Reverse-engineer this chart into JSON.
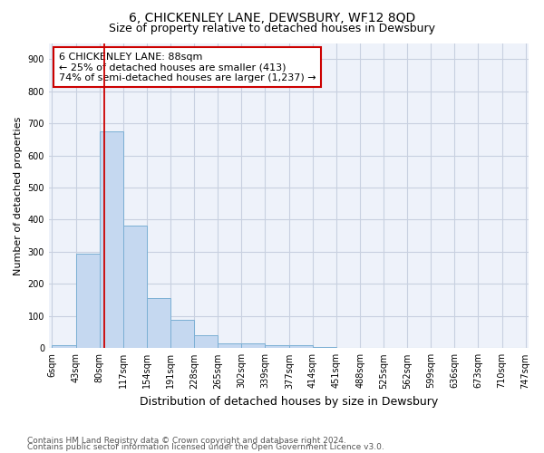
{
  "title1": "6, CHICKENLEY LANE, DEWSBURY, WF12 8QD",
  "title2": "Size of property relative to detached houses in Dewsbury",
  "xlabel": "Distribution of detached houses by size in Dewsbury",
  "ylabel": "Number of detached properties",
  "bar_edges": [
    6,
    43,
    80,
    117,
    154,
    191,
    228,
    265,
    302,
    339,
    377,
    414,
    451,
    488,
    525,
    562,
    599,
    636,
    673,
    710,
    747
  ],
  "bar_heights": [
    10,
    295,
    675,
    383,
    155,
    88,
    40,
    15,
    15,
    10,
    10,
    5,
    0,
    0,
    0,
    0,
    0,
    0,
    0,
    0
  ],
  "bar_color": "#c5d8f0",
  "bar_edgecolor": "#7bafd4",
  "vline_x": 88,
  "vline_color": "#cc0000",
  "annotation_line1": "6 CHICKENLEY LANE: 88sqm",
  "annotation_line2": "← 25% of detached houses are smaller (413)",
  "annotation_line3": "74% of semi-detached houses are larger (1,237) →",
  "annotation_box_color": "#cc0000",
  "ylim": [
    0,
    950
  ],
  "yticks": [
    0,
    100,
    200,
    300,
    400,
    500,
    600,
    700,
    800,
    900
  ],
  "grid_color": "#c8d0e0",
  "bg_color": "#eef2fa",
  "footer1": "Contains HM Land Registry data © Crown copyright and database right 2024.",
  "footer2": "Contains public sector information licensed under the Open Government Licence v3.0.",
  "title1_fontsize": 10,
  "title2_fontsize": 9,
  "xlabel_fontsize": 9,
  "ylabel_fontsize": 8,
  "tick_fontsize": 7,
  "annotation_fontsize": 8,
  "footer_fontsize": 6.5
}
